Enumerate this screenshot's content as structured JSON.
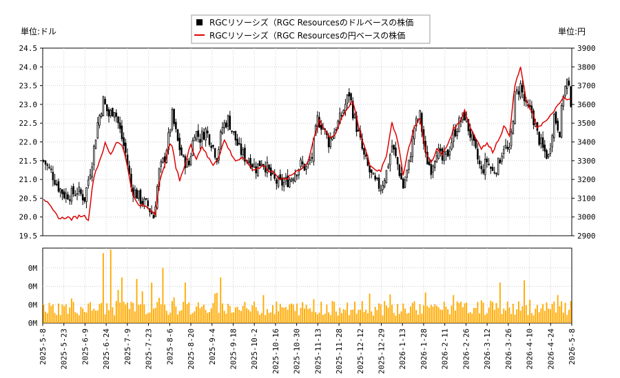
{
  "chart_data": {
    "type": "candlestick-line-bar",
    "legend": {
      "position": "top-center",
      "items": [
        {
          "name": "RGCリソーシズ（RGC Resourcesのドルベースの株価",
          "color": "#000000",
          "marker": "square"
        },
        {
          "name": "RGCリソーシズ（RGC Resourcesの円ベースの株価",
          "color": "#dd0000",
          "marker": "line"
        }
      ]
    },
    "left_unit": "単位:ドル",
    "right_unit": "単位:円",
    "left_axis": {
      "min": 19.5,
      "max": 24.5,
      "ticks": [
        "19.5",
        "20.0",
        "20.5",
        "21.0",
        "21.5",
        "22.0",
        "22.5",
        "23.0",
        "23.5",
        "24.0",
        "24.5"
      ]
    },
    "right_axis": {
      "min": 2900,
      "max": 3900,
      "ticks": [
        "2900",
        "3000",
        "3100",
        "3200",
        "3300",
        "3400",
        "3500",
        "3600",
        "3700",
        "3800",
        "3900"
      ]
    },
    "volume_axis": {
      "ticks": [
        "0M",
        "0M",
        "0M",
        "0M"
      ]
    },
    "x_dates": [
      "2025-5-8",
      "2025-5-23",
      "2025-6-9",
      "2025-6-24",
      "2025-7-9",
      "2025-7-23",
      "2025-8-6",
      "2025-8-20",
      "2025-9-4",
      "2025-9-18",
      "2025-10-2",
      "2025-10-16",
      "2025-10-30",
      "2025-11-13",
      "2025-11-28",
      "2025-12-12",
      "2025-12-29",
      "2026-1-13",
      "2026-1-28",
      "2026-2-11",
      "2026-2-26",
      "2026-3-12",
      "2026-3-26",
      "2026-4-10",
      "2026-4-24",
      "2026-5-8"
    ],
    "usd_close_anchors": [
      [
        0,
        21.5
      ],
      [
        4,
        21.2
      ],
      [
        8,
        20.8
      ],
      [
        11,
        20.6
      ],
      [
        15,
        20.6
      ],
      [
        18,
        20.7
      ],
      [
        22,
        20.5
      ],
      [
        26,
        21.5
      ],
      [
        29,
        22.5
      ],
      [
        32,
        23.1
      ],
      [
        35,
        22.7
      ],
      [
        38,
        22.9
      ],
      [
        41,
        22.3
      ],
      [
        44,
        21.7
      ],
      [
        47,
        20.8
      ],
      [
        50,
        20.6
      ],
      [
        53,
        20.4
      ],
      [
        56,
        20.3
      ],
      [
        59,
        20.0
      ],
      [
        62,
        21.2
      ],
      [
        65,
        21.6
      ],
      [
        67,
        22.1
      ],
      [
        69,
        22.7
      ],
      [
        72,
        22.0
      ],
      [
        75,
        21.5
      ],
      [
        78,
        21.4
      ],
      [
        81,
        22.3
      ],
      [
        84,
        22.1
      ],
      [
        87,
        22.3
      ],
      [
        90,
        22.0
      ],
      [
        93,
        21.6
      ],
      [
        96,
        22.4
      ],
      [
        99,
        22.6
      ],
      [
        102,
        22.2
      ],
      [
        105,
        21.8
      ],
      [
        108,
        21.6
      ],
      [
        111,
        21.5
      ],
      [
        114,
        21.3
      ],
      [
        117,
        21.5
      ],
      [
        120,
        21.3
      ],
      [
        123,
        21.0
      ],
      [
        126,
        20.9
      ],
      [
        129,
        20.9
      ],
      [
        132,
        21.0
      ],
      [
        135,
        21.2
      ],
      [
        138,
        21.4
      ],
      [
        141,
        21.3
      ],
      [
        144,
        21.6
      ],
      [
        147,
        22.6
      ],
      [
        150,
        22.4
      ],
      [
        153,
        22.0
      ],
      [
        156,
        22.3
      ],
      [
        159,
        22.6
      ],
      [
        162,
        23.0
      ],
      [
        164,
        23.3
      ],
      [
        166,
        22.8
      ],
      [
        169,
        22.2
      ],
      [
        172,
        21.6
      ],
      [
        175,
        21.2
      ],
      [
        178,
        20.9
      ],
      [
        181,
        20.8
      ],
      [
        184,
        21.2
      ],
      [
        187,
        21.9
      ],
      [
        190,
        21.4
      ],
      [
        193,
        20.8
      ],
      [
        196,
        21.4
      ],
      [
        199,
        22.4
      ],
      [
        202,
        22.7
      ],
      [
        205,
        21.6
      ],
      [
        208,
        21.3
      ],
      [
        211,
        21.8
      ],
      [
        214,
        21.5
      ],
      [
        217,
        21.7
      ],
      [
        220,
        22.2
      ],
      [
        223,
        22.5
      ],
      [
        226,
        22.7
      ],
      [
        229,
        22.2
      ],
      [
        232,
        21.7
      ],
      [
        235,
        21.2
      ],
      [
        238,
        21.5
      ],
      [
        241,
        21.2
      ],
      [
        244,
        21.4
      ],
      [
        247,
        21.9
      ],
      [
        250,
        21.7
      ],
      [
        253,
        23.2
      ],
      [
        256,
        23.5
      ],
      [
        259,
        22.9
      ],
      [
        262,
        22.8
      ],
      [
        265,
        22.2
      ],
      [
        268,
        21.8
      ],
      [
        271,
        21.6
      ],
      [
        274,
        22.7
      ],
      [
        277,
        22.3
      ],
      [
        279,
        23.3
      ],
      [
        281,
        23.6
      ],
      [
        283,
        23.1
      ]
    ],
    "jpy_close_anchors": [
      [
        0,
        3100
      ],
      [
        3,
        3060
      ],
      [
        6,
        3020
      ],
      [
        9,
        2990
      ],
      [
        12,
        3000
      ],
      [
        15,
        2990
      ],
      [
        18,
        3000
      ],
      [
        21,
        3010
      ],
      [
        24,
        2990
      ],
      [
        27,
        3220
      ],
      [
        30,
        3300
      ],
      [
        33,
        3390
      ],
      [
        36,
        3330
      ],
      [
        39,
        3400
      ],
      [
        42,
        3390
      ],
      [
        45,
        3270
      ],
      [
        48,
        3110
      ],
      [
        51,
        3060
      ],
      [
        54,
        3060
      ],
      [
        57,
        3040
      ],
      [
        60,
        3020
      ],
      [
        62,
        3180
      ],
      [
        65,
        3270
      ],
      [
        67,
        3380
      ],
      [
        69,
        3380
      ],
      [
        71,
        3260
      ],
      [
        73,
        3200
      ],
      [
        76,
        3280
      ],
      [
        79,
        3390
      ],
      [
        82,
        3310
      ],
      [
        85,
        3380
      ],
      [
        88,
        3320
      ],
      [
        91,
        3280
      ],
      [
        94,
        3320
      ],
      [
        97,
        3410
      ],
      [
        100,
        3350
      ],
      [
        103,
        3300
      ],
      [
        106,
        3310
      ],
      [
        109,
        3300
      ],
      [
        112,
        3250
      ],
      [
        115,
        3260
      ],
      [
        118,
        3280
      ],
      [
        121,
        3240
      ],
      [
        124,
        3240
      ],
      [
        127,
        3200
      ],
      [
        130,
        3200
      ],
      [
        133,
        3220
      ],
      [
        136,
        3250
      ],
      [
        139,
        3260
      ],
      [
        142,
        3300
      ],
      [
        145,
        3420
      ],
      [
        148,
        3510
      ],
      [
        151,
        3460
      ],
      [
        154,
        3420
      ],
      [
        157,
        3450
      ],
      [
        160,
        3530
      ],
      [
        163,
        3580
      ],
      [
        166,
        3620
      ],
      [
        169,
        3480
      ],
      [
        172,
        3380
      ],
      [
        175,
        3280
      ],
      [
        178,
        3250
      ],
      [
        181,
        3250
      ],
      [
        184,
        3330
      ],
      [
        187,
        3510
      ],
      [
        190,
        3400
      ],
      [
        193,
        3230
      ],
      [
        196,
        3370
      ],
      [
        199,
        3480
      ],
      [
        202,
        3530
      ],
      [
        205,
        3350
      ],
      [
        208,
        3290
      ],
      [
        211,
        3360
      ],
      [
        214,
        3330
      ],
      [
        217,
        3390
      ],
      [
        220,
        3470
      ],
      [
        223,
        3500
      ],
      [
        226,
        3570
      ],
      [
        229,
        3480
      ],
      [
        232,
        3420
      ],
      [
        235,
        3370
      ],
      [
        238,
        3390
      ],
      [
        241,
        3350
      ],
      [
        244,
        3410
      ],
      [
        247,
        3480
      ],
      [
        250,
        3440
      ],
      [
        253,
        3700
      ],
      [
        256,
        3800
      ],
      [
        259,
        3620
      ],
      [
        262,
        3560
      ],
      [
        265,
        3480
      ],
      [
        268,
        3500
      ],
      [
        271,
        3520
      ],
      [
        274,
        3570
      ],
      [
        277,
        3600
      ],
      [
        279,
        3640
      ],
      [
        281,
        3620
      ],
      [
        283,
        3630
      ]
    ],
    "n_days": 284,
    "colors": {
      "candle": "#000000",
      "jpy_line": "#dd0000",
      "volume": "#ffaa00"
    }
  }
}
